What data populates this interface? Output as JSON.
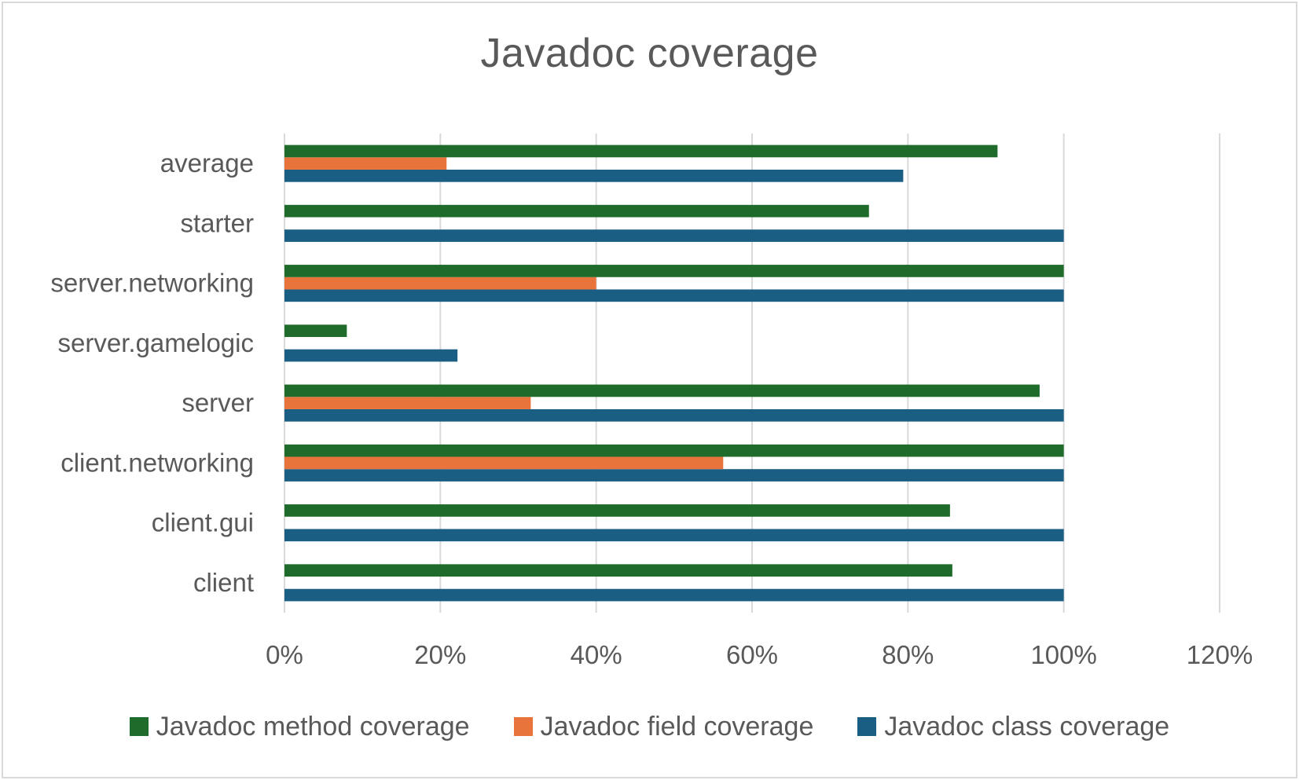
{
  "chart_data": {
    "type": "bar",
    "orientation": "horizontal",
    "title": "Javadoc coverage",
    "categories": [
      "client",
      "client.gui",
      "client.networking",
      "server",
      "server.gamelogic",
      "server.networking",
      "starter",
      "average"
    ],
    "series": [
      {
        "name": "Javadoc class coverage",
        "color": "#1b5e83",
        "values": [
          100,
          100,
          100,
          100,
          22.2,
          100,
          100,
          79.4
        ]
      },
      {
        "name": "Javadoc field coverage",
        "color": "#e8743b",
        "values": [
          0,
          0,
          56.3,
          31.6,
          0,
          40,
          0,
          20.8
        ]
      },
      {
        "name": "Javadoc method coverage",
        "color": "#1e6b2b",
        "values": [
          85.7,
          85.4,
          100,
          96.9,
          8,
          100,
          75,
          91.5
        ]
      }
    ],
    "xlim": [
      0,
      120
    ],
    "xticks": [
      0,
      20,
      40,
      60,
      80,
      100,
      120
    ],
    "tick_format": "percent",
    "grid": true,
    "legend_position": "bottom"
  }
}
